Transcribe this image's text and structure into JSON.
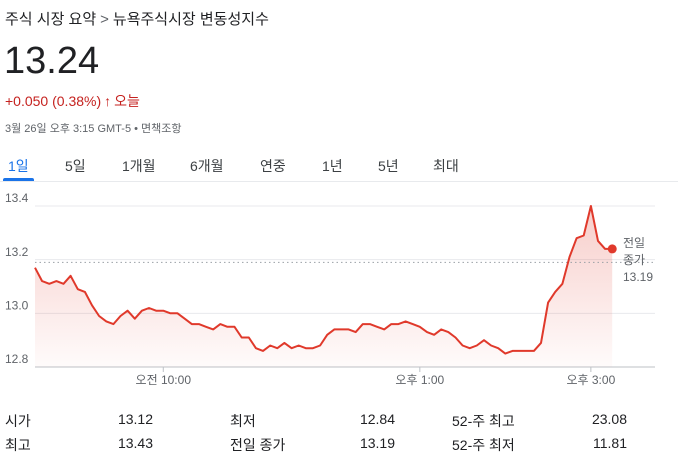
{
  "header": {
    "breadcrumb": [
      "주식 시장 요약",
      ">",
      "뉴욕주식시장 변동성지수"
    ],
    "price": "13.24",
    "change": "+0.050 (0.38%)",
    "change_arrow": "↑",
    "period": "오늘",
    "timestamp": "3월 26일 오후 3:15 GMT-5",
    "separator": "•",
    "disclaimer": "면책조항"
  },
  "tabs": [
    "1일",
    "5일",
    "1개월",
    "6개월",
    "연중",
    "1년",
    "5년",
    "최대"
  ],
  "selected_tab": 0,
  "chart_data": {
    "type": "line",
    "color": "#e0392b",
    "x": [
      510,
      515,
      520,
      525,
      530,
      535,
      540,
      545,
      550,
      555,
      560,
      565,
      570,
      575,
      580,
      585,
      590,
      595,
      600,
      605,
      610,
      615,
      620,
      625,
      630,
      635,
      640,
      645,
      650,
      655,
      660,
      665,
      670,
      675,
      680,
      685,
      690,
      695,
      700,
      705,
      710,
      715,
      720,
      725,
      730,
      735,
      740,
      745,
      750,
      755,
      760,
      765,
      770,
      775,
      780,
      785,
      790,
      795,
      800,
      805,
      810,
      815,
      820,
      825,
      830,
      835,
      840,
      845,
      850,
      855,
      860,
      865,
      870,
      875,
      880,
      885,
      890,
      895,
      900,
      905,
      910,
      915
    ],
    "values": [
      13.17,
      13.12,
      13.11,
      13.12,
      13.11,
      13.14,
      13.09,
      13.08,
      13.03,
      12.99,
      12.97,
      12.96,
      12.99,
      13.01,
      12.98,
      13.01,
      13.02,
      13.01,
      13.01,
      13.0,
      13.0,
      12.98,
      12.96,
      12.96,
      12.95,
      12.94,
      12.96,
      12.95,
      12.95,
      12.91,
      12.91,
      12.87,
      12.86,
      12.88,
      12.87,
      12.89,
      12.87,
      12.88,
      12.87,
      12.87,
      12.88,
      12.92,
      12.94,
      12.94,
      12.94,
      12.93,
      12.96,
      12.96,
      12.95,
      12.94,
      12.96,
      12.96,
      12.97,
      12.96,
      12.95,
      12.93,
      12.92,
      12.94,
      12.93,
      12.91,
      12.88,
      12.87,
      12.88,
      12.9,
      12.88,
      12.87,
      12.85,
      12.86,
      12.86,
      12.86,
      12.86,
      12.89,
      13.04,
      13.08,
      13.11,
      13.21,
      13.28,
      13.29,
      13.4,
      13.27,
      13.24,
      13.24
    ],
    "xlim": [
      510,
      945
    ],
    "xticks": [
      {
        "value": 600,
        "label": "오전 10:00"
      },
      {
        "value": 780,
        "label": "오후 1:00"
      },
      {
        "value": 900,
        "label": "오후 3:00"
      }
    ],
    "ylim": [
      12.8,
      13.4
    ],
    "yticks": [
      {
        "value": 12.8,
        "label": "12.8"
      },
      {
        "value": 13.0,
        "label": "13.0"
      },
      {
        "value": 13.2,
        "label": "13.2"
      },
      {
        "value": 13.4,
        "label": "13.4"
      }
    ],
    "grid": true,
    "previous_close": {
      "label_lines": [
        "전일",
        "종가"
      ],
      "value": 13.19
    }
  },
  "stats": [
    [
      [
        "시가",
        "13.12"
      ],
      [
        "최저",
        "12.84"
      ],
      [
        "52-주 최고",
        "23.08"
      ]
    ],
    [
      [
        "최고",
        "13.43"
      ],
      [
        "전일 종가",
        "13.19"
      ],
      [
        "52-주 최저",
        "11.81"
      ]
    ]
  ]
}
